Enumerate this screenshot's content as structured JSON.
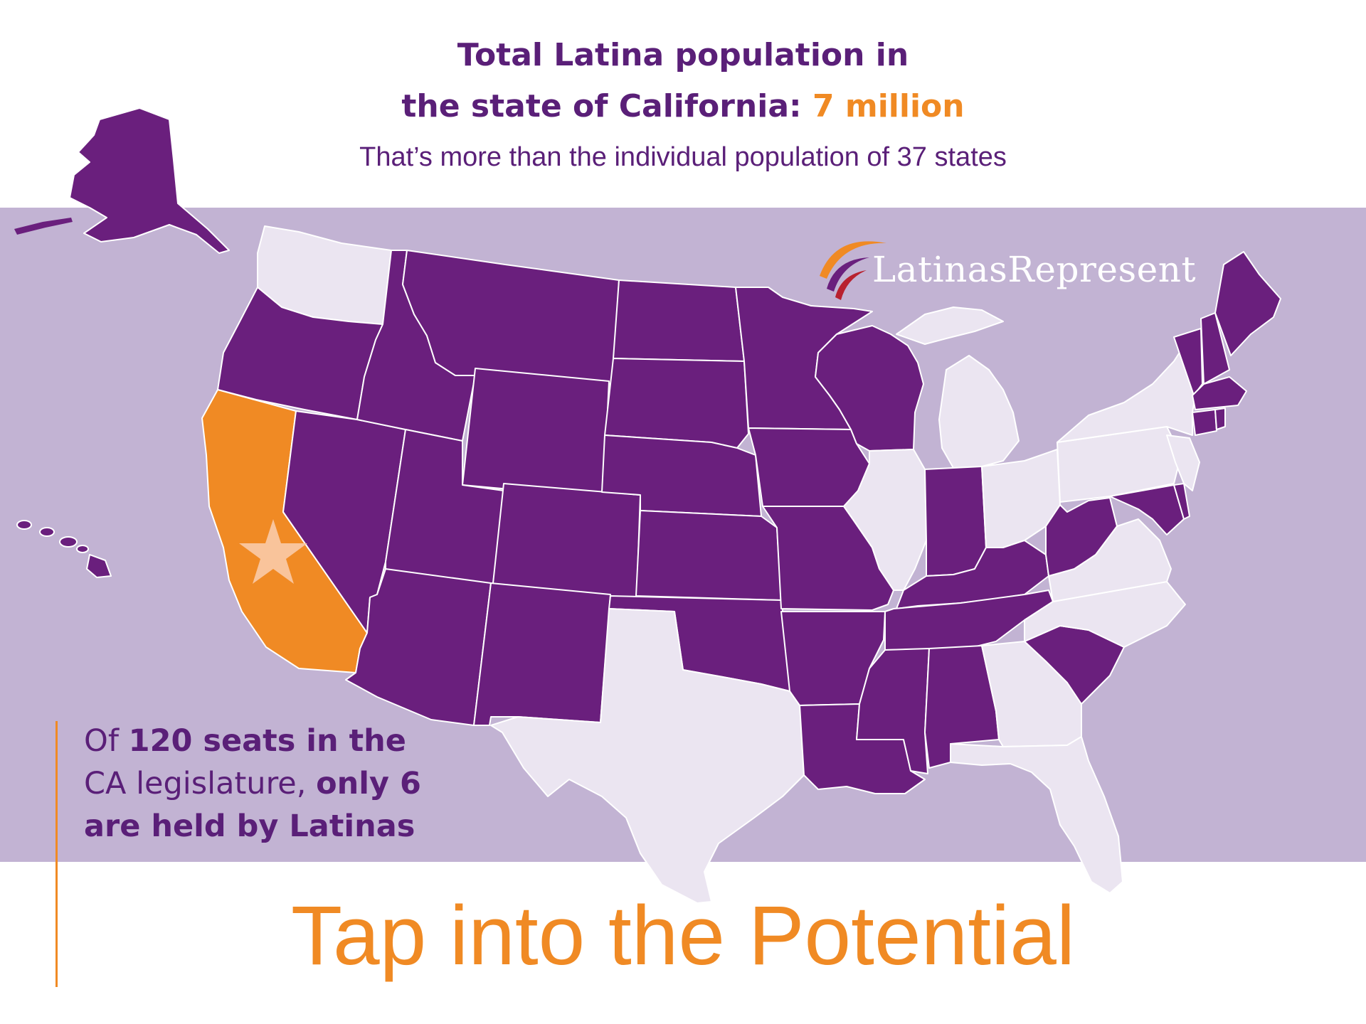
{
  "header": {
    "line1": "Total Latina population in",
    "line2_prefix": "the state of California: ",
    "line2_highlight": "7 million",
    "subtitle": "That’s more than the individual population of 37 states"
  },
  "brand": {
    "name": "LatinasRepresent"
  },
  "stat": {
    "line1_pre": "Of ",
    "line1_bold": "120 seats in the",
    "line2_pre": "CA legislature, ",
    "line2_bold": "only 6",
    "line3_bold": "are held by Latinas"
  },
  "cta": {
    "text": "Tap into the Potential"
  },
  "colors": {
    "purple": "#6a1f7d",
    "light": "#ebe5f1",
    "highlight": "#f08a24",
    "star": "#f9c49b",
    "band": "#c2b3d3"
  },
  "map": {
    "highlighted_state": "California",
    "purple_states": [
      "Alaska",
      "Hawaii",
      "Oregon",
      "Idaho",
      "Nevada",
      "Montana",
      "Wyoming",
      "Utah",
      "Colorado",
      "Arizona",
      "New Mexico",
      "North Dakota",
      "South Dakota",
      "Nebraska",
      "Kansas",
      "Oklahoma",
      "Minnesota",
      "Iowa",
      "Missouri",
      "Arkansas",
      "Louisiana",
      "Wisconsin",
      "Indiana",
      "Kentucky",
      "Tennessee",
      "Mississippi",
      "Alabama",
      "West Virginia",
      "Maryland",
      "Delaware",
      "South Carolina",
      "Maine",
      "Vermont",
      "New Hampshire",
      "Massachusetts",
      "Connecticut",
      "Rhode Island"
    ],
    "light_states": [
      "Washington",
      "Texas",
      "Illinois",
      "Michigan",
      "Ohio",
      "Pennsylvania",
      "New York",
      "New Jersey",
      "Virginia",
      "North Carolina",
      "Georgia",
      "Florida"
    ]
  }
}
